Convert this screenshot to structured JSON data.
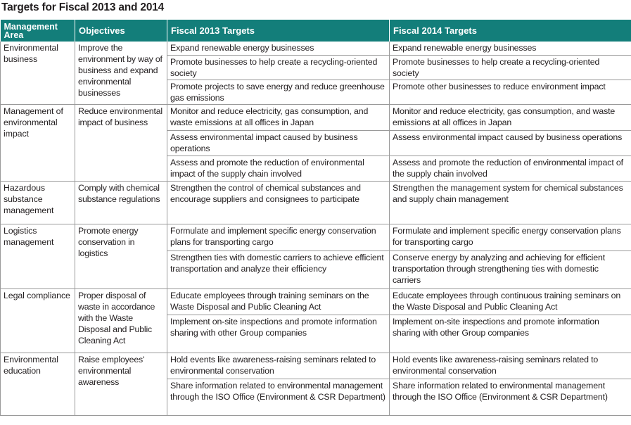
{
  "title": "Targets for Fiscal 2013 and 2014",
  "header": {
    "area": "Management Area",
    "objectives": "Objectives",
    "fy2013": "Fiscal 2013 Targets",
    "fy2014": "Fiscal 2014 Targets"
  },
  "sections": [
    {
      "area": "Environmental business",
      "objective": "Improve the environment by way of business and expand environmental businesses",
      "rows": [
        {
          "fy2013": "Expand renewable energy businesses",
          "fy2014": "Expand renewable energy businesses"
        },
        {
          "fy2013": "Promote businesses to help create a recycling-oriented society",
          "fy2014": "Promote businesses to help create a recycling-oriented society"
        },
        {
          "fy2013": "Promote projects to save energy and reduce greenhouse gas emissions",
          "fy2014": "Promote other businesses to reduce environment impact"
        }
      ]
    },
    {
      "area": "Management of environmental impact",
      "objective": "Reduce environmental impact of business",
      "rows": [
        {
          "fy2013": "Monitor and reduce electricity, gas consumption, and waste emissions at all offices in Japan",
          "fy2014": "Monitor and reduce electricity, gas consumption, and waste emissions at all offices in Japan"
        },
        {
          "fy2013": "Assess environmental impact caused by business operations",
          "fy2014": "Assess environmental impact caused by business operations"
        },
        {
          "fy2013": "Assess and promote the reduction of environmental impact of the supply chain involved",
          "fy2014": "Assess and promote the reduction of environmental impact of the supply chain involved"
        }
      ]
    },
    {
      "area": "Hazardous substance management",
      "objective": "Comply with chemical substance regulations",
      "rows": [
        {
          "fy2013": "Strengthen the control of chemical substances and encourage suppliers and consignees to participate",
          "fy2014": "Strengthen the management system for chemical substances and supply chain management"
        }
      ]
    },
    {
      "area": "Logistics management",
      "objective": "Promote energy conservation in logistics",
      "rows": [
        {
          "fy2013": "Formulate and implement specific energy conservation plans for transporting cargo",
          "fy2014": "Formulate and implement specific energy conservation plans for transporting cargo"
        },
        {
          "fy2013": "Strengthen ties with domestic carriers to achieve efficient transportation and analyze their efficiency",
          "fy2014": "Conserve energy by analyzing and achieving for efficient transportation through strengthening ties with domestic carriers"
        }
      ]
    },
    {
      "area": "Legal compliance",
      "objective": "Proper disposal of waste in accordance with the Waste Disposal and Public Cleaning Act",
      "rows": [
        {
          "fy2013": "Educate employees through training seminars on the Waste Disposal and Public Cleaning Act",
          "fy2014": "Educate employees through continuous training seminars on the Waste Disposal and Public Cleaning Act"
        },
        {
          "fy2013": "Implement on-site inspections and promote information sharing with other Group companies",
          "fy2014": "Implement on-site inspections and promote information sharing with other Group companies"
        }
      ]
    },
    {
      "area": "Environmental education",
      "objective": "Raise employees' environmental awareness",
      "rows": [
        {
          "fy2013": "Hold events like awareness-raising seminars related to environmental conservation",
          "fy2014": "Hold events like awareness-raising seminars related to environmental conservation"
        },
        {
          "fy2013": "Share information related to environmental management through the ISO Office (Environment & CSR Department)",
          "fy2014": "Share information related to environmental management through the ISO Office (Environment & CSR Department)"
        }
      ]
    }
  ]
}
